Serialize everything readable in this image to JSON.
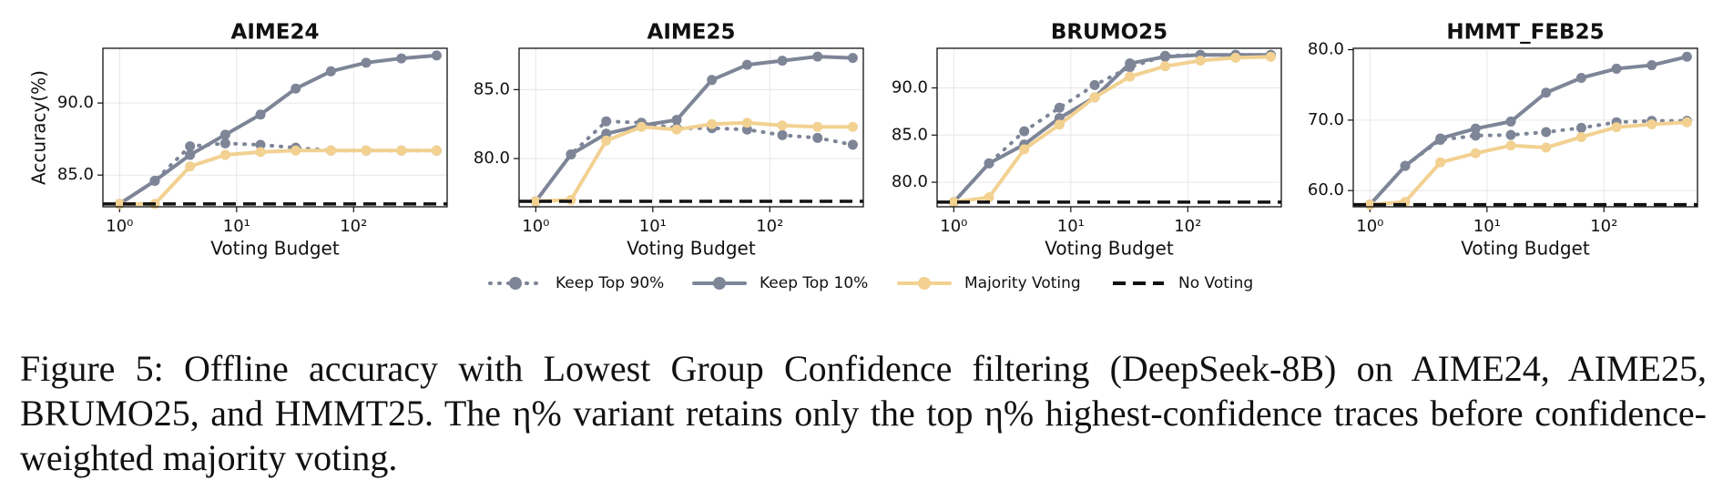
{
  "legend": [
    {
      "name": "Keep Top 90%",
      "color": "#7d8597",
      "linestyle": "dotted",
      "marker": true
    },
    {
      "name": "Keep Top 10%",
      "color": "#7d8597",
      "linestyle": "solid",
      "marker": true
    },
    {
      "name": "Majority Voting",
      "color": "#f2d191",
      "linestyle": "solid",
      "marker": true
    },
    {
      "name": "No Voting",
      "color": "#111111",
      "linestyle": "dashed",
      "marker": false
    }
  ],
  "chart_data": [
    {
      "type": "line",
      "title": "AIME24",
      "xlabel": "Voting Budget",
      "ylabel": "Accuracy(%)",
      "xscale": "log",
      "grid": true,
      "x": [
        1,
        2,
        4,
        8,
        16,
        32,
        64,
        128,
        256,
        512
      ],
      "xlim": [
        0.72,
        630
      ],
      "xticks": [
        {
          "value": 1,
          "label": "10⁰"
        },
        {
          "value": 10,
          "label": "10¹"
        },
        {
          "value": 100,
          "label": "10²"
        }
      ],
      "ylim": [
        82.8,
        93.8
      ],
      "yticks": [
        {
          "value": 85,
          "label": "85.0"
        },
        {
          "value": 90,
          "label": "90.0"
        }
      ],
      "series": [
        {
          "values": [
            83.0,
            84.6,
            87.0,
            87.2,
            87.1,
            86.9,
            86.7,
            86.7,
            86.7,
            86.7
          ]
        },
        {
          "values": [
            83.0,
            84.6,
            86.4,
            87.8,
            89.2,
            91.0,
            92.2,
            92.8,
            93.1,
            93.3
          ]
        },
        {
          "values": [
            83.0,
            83.0,
            85.6,
            86.4,
            86.6,
            86.7,
            86.7,
            86.7,
            86.7,
            86.7
          ]
        },
        {
          "value": 83.0
        }
      ]
    },
    {
      "type": "line",
      "title": "AIME25",
      "xlabel": "Voting Budget",
      "xscale": "log",
      "grid": true,
      "x": [
        1,
        2,
        4,
        8,
        16,
        32,
        64,
        128,
        256,
        512
      ],
      "xlim": [
        0.72,
        630
      ],
      "xticks": [
        {
          "value": 1,
          "label": "10⁰"
        },
        {
          "value": 10,
          "label": "10¹"
        },
        {
          "value": 100,
          "label": "10²"
        }
      ],
      "ylim": [
        76.5,
        88.0
      ],
      "yticks": [
        {
          "value": 80,
          "label": "80.0"
        },
        {
          "value": 85,
          "label": "85.0"
        }
      ],
      "series": [
        {
          "values": [
            76.9,
            80.3,
            82.7,
            82.6,
            82.2,
            82.2,
            82.1,
            81.7,
            81.5,
            81.0
          ]
        },
        {
          "values": [
            76.9,
            80.3,
            81.8,
            82.4,
            82.8,
            85.7,
            86.8,
            87.1,
            87.4,
            87.3
          ]
        },
        {
          "values": [
            76.9,
            77.0,
            81.3,
            82.3,
            82.1,
            82.5,
            82.6,
            82.4,
            82.3,
            82.3
          ]
        },
        {
          "value": 76.9
        }
      ]
    },
    {
      "type": "line",
      "title": "BRUMO25",
      "xlabel": "Voting Budget",
      "xscale": "log",
      "grid": true,
      "x": [
        1,
        2,
        4,
        8,
        16,
        32,
        64,
        128,
        256,
        512
      ],
      "xlim": [
        0.72,
        630
      ],
      "xticks": [
        {
          "value": 1,
          "label": "10⁰"
        },
        {
          "value": 10,
          "label": "10¹"
        },
        {
          "value": 100,
          "label": "10²"
        }
      ],
      "ylim": [
        77.4,
        94.2
      ],
      "yticks": [
        {
          "value": 80,
          "label": "80.0"
        },
        {
          "value": 85,
          "label": "85.0"
        },
        {
          "value": 90,
          "label": "90.0"
        }
      ],
      "series": [
        {
          "values": [
            77.9,
            82.0,
            85.4,
            87.9,
            90.3,
            92.2,
            93.4,
            93.5,
            93.5,
            93.5
          ]
        },
        {
          "values": [
            77.9,
            82.0,
            84.0,
            86.8,
            89.0,
            92.6,
            93.3,
            93.5,
            93.5,
            93.5
          ]
        },
        {
          "values": [
            77.9,
            78.4,
            83.5,
            86.1,
            89.0,
            91.2,
            92.3,
            92.9,
            93.2,
            93.3
          ]
        },
        {
          "value": 77.9
        }
      ]
    },
    {
      "type": "line",
      "title": "HMMT_FEB25",
      "xlabel": "Voting Budget",
      "xscale": "log",
      "grid": true,
      "x": [
        1,
        2,
        4,
        8,
        16,
        32,
        64,
        128,
        256,
        512
      ],
      "xlim": [
        0.72,
        630
      ],
      "xticks": [
        {
          "value": 1,
          "label": "10⁰"
        },
        {
          "value": 10,
          "label": "10¹"
        },
        {
          "value": 100,
          "label": "10²"
        }
      ],
      "ylim": [
        57.7,
        80.2
      ],
      "yticks": [
        {
          "value": 60,
          "label": "60.0"
        },
        {
          "value": 70,
          "label": "70.0"
        },
        {
          "value": 80,
          "label": "80.0"
        }
      ],
      "series": [
        {
          "values": [
            58.0,
            63.5,
            67.2,
            67.8,
            67.9,
            68.3,
            68.9,
            69.7,
            69.9,
            69.9
          ]
        },
        {
          "values": [
            58.0,
            63.5,
            67.4,
            68.8,
            69.8,
            73.9,
            76.0,
            77.3,
            77.8,
            79.0
          ]
        },
        {
          "values": [
            58.0,
            58.4,
            64.0,
            65.3,
            66.4,
            66.1,
            67.6,
            69.0,
            69.4,
            69.7
          ]
        },
        {
          "value": 58.0
        }
      ]
    }
  ],
  "caption": "Figure 5: Offline accuracy with Lowest Group Confidence filtering (DeepSeek-8B) on AIME24, AIME25, BRUMO25, and HMMT25. The η% variant retains only the top η% highest-confidence traces before confidence-weighted majority voting."
}
